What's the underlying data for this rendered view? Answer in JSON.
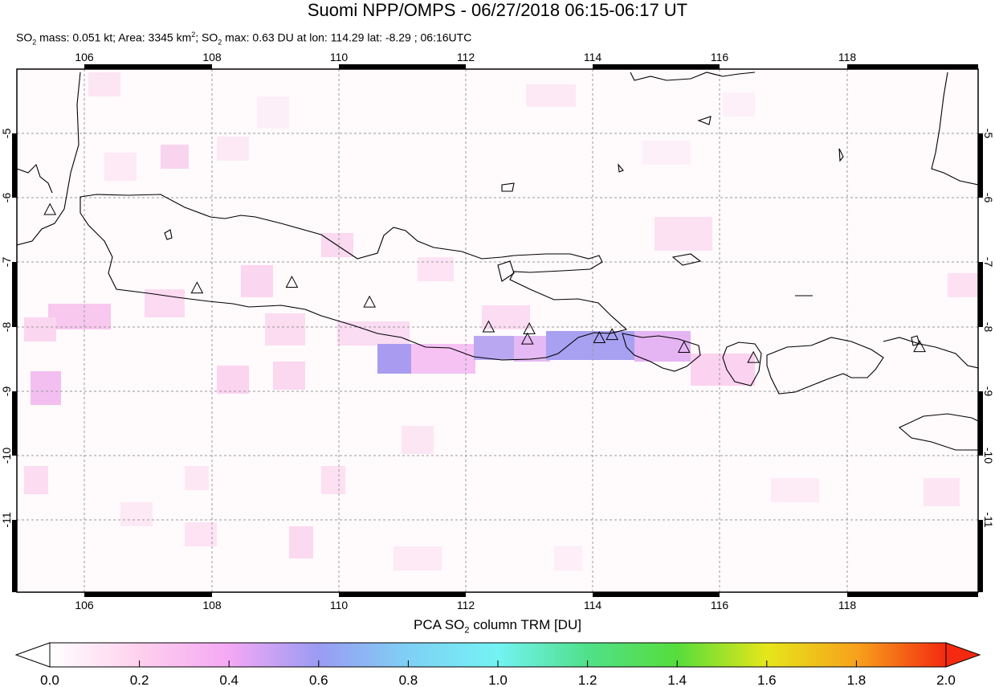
{
  "title": "Suomi NPP/OMPS - 06/27/2018 06:15-06:17 UT",
  "subtitle": {
    "mass_prefix": "SO",
    "mass_sub": "2",
    "mass_text": " mass: 0.051 kt; Area: 3345 km",
    "area_sup": "2",
    "max_text": "; SO",
    "max_sub": "2",
    "rest": " max: 0.63 DU at lon: 114.29 lat: -8.29 ; 06:16UTC"
  },
  "map": {
    "lon_range": [
      104.9,
      120.0
    ],
    "lat_range": [
      -12.1,
      -3.9
    ],
    "lon_ticks": [
      "106",
      "108",
      "110",
      "112",
      "114",
      "116",
      "118"
    ],
    "lat_ticks": [
      "-5",
      "-6",
      "-7",
      "-8",
      "-9",
      "-10",
      "-11"
    ],
    "grid": "dashed",
    "volcanoes": [
      [
        105.42,
        -6.1
      ],
      [
        107.73,
        -7.33
      ],
      [
        109.22,
        -7.24
      ],
      [
        110.44,
        -7.55
      ],
      [
        112.31,
        -7.94
      ],
      [
        112.95,
        -7.97
      ],
      [
        112.92,
        -8.13
      ],
      [
        114.05,
        -8.11
      ],
      [
        114.25,
        -8.06
      ],
      [
        115.38,
        -8.26
      ],
      [
        116.47,
        -8.42
      ],
      [
        119.08,
        -8.25
      ]
    ]
  },
  "colorbar": {
    "label_prefix": "PCA SO",
    "label_sub": "2",
    "label_suffix": " column TRM [DU]",
    "ticks": [
      "0.0",
      "0.2",
      "0.4",
      "0.6",
      "0.8",
      "1.0",
      "1.2",
      "1.4",
      "1.6",
      "1.8",
      "2.0"
    ],
    "colors": [
      "#ffffff",
      "#ffd0ee",
      "#f4a8f4",
      "#9b9bf3",
      "#7fd0f5",
      "#73f3f3",
      "#50e08a",
      "#56dd3c",
      "#e6e61a",
      "#f7a21c",
      "#f32a10"
    ]
  }
}
